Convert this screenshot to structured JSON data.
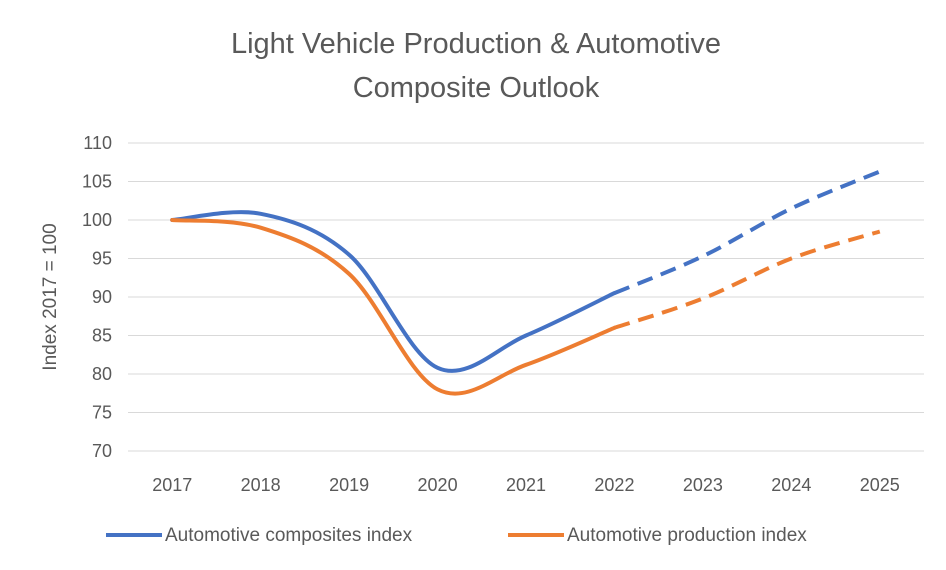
{
  "chart_data": {
    "type": "line",
    "title_lines": [
      "Light Vehicle Production & Automotive",
      "Composite Outlook"
    ],
    "ylabel": "Index 2017 = 100",
    "xlabel": "",
    "categories": [
      "2017",
      "2018",
      "2019",
      "2020",
      "2021",
      "2022",
      "2023",
      "2024",
      "2025"
    ],
    "ylim": [
      70,
      110
    ],
    "yticks": [
      70,
      75,
      80,
      85,
      90,
      95,
      100,
      105,
      110
    ],
    "grid": true,
    "legend_position": "bottom",
    "forecast_from_index": 5,
    "series": [
      {
        "name": "Automotive composites index",
        "color": "#4472C4",
        "values": [
          100,
          100.8,
          95.5,
          80.8,
          85,
          90.5,
          95.3,
          101.5,
          106.3
        ]
      },
      {
        "name": "Automotive production index",
        "color": "#ED7D31",
        "values": [
          100,
          99,
          93,
          78,
          81.2,
          86,
          89.8,
          95,
          98.5
        ]
      }
    ]
  }
}
